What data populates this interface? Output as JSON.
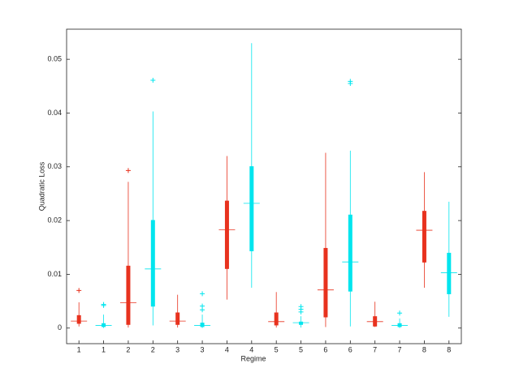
{
  "chart_data": {
    "type": "box",
    "xlabel": "Regime",
    "ylabel": "Quadratic Loss",
    "categories": [
      "1",
      "1",
      "2",
      "2",
      "3",
      "3",
      "4",
      "4",
      "5",
      "5",
      "6",
      "6",
      "7",
      "7",
      "8",
      "8"
    ],
    "colors": [
      "#e8321e",
      "#00e5ee"
    ],
    "ylim": [
      -0.0029,
      0.0556
    ],
    "yticks": [
      0,
      0.01,
      0.02,
      0.03,
      0.04,
      0.05
    ],
    "boxes": [
      {
        "whislo": 0.0003,
        "q1": 0.0008,
        "med": 0.0013,
        "q3": 0.0024,
        "whishi": 0.0048,
        "fliers": [
          0.007
        ]
      },
      {
        "whislo": 0,
        "q1": 0.0002,
        "med": 0.0005,
        "q3": 0.0009,
        "whishi": 0.0025,
        "fliers": [
          0.0042,
          0.0044
        ]
      },
      {
        "whislo": 0.0001,
        "q1": 0.0006,
        "med": 0.0047,
        "q3": 0.0116,
        "whishi": 0.0272,
        "fliers": [
          0.0293
        ]
      },
      {
        "whislo": 0.0005,
        "q1": 0.004,
        "med": 0.011,
        "q3": 0.0201,
        "whishi": 0.0403,
        "fliers": [
          0.0461
        ]
      },
      {
        "whislo": 0.0001,
        "q1": 0.0006,
        "med": 0.0013,
        "q3": 0.0029,
        "whishi": 0.0062,
        "fliers": []
      },
      {
        "whislo": 0,
        "q1": 0.0002,
        "med": 0.0005,
        "q3": 0.001,
        "whishi": 0.0025,
        "fliers": [
          0.0034,
          0.0041,
          0.0064
        ]
      },
      {
        "whislo": 0.0053,
        "q1": 0.011,
        "med": 0.0183,
        "q3": 0.0237,
        "whishi": 0.032,
        "fliers": []
      },
      {
        "whislo": 0.0075,
        "q1": 0.0143,
        "med": 0.0232,
        "q3": 0.0301,
        "whishi": 0.053,
        "fliers": []
      },
      {
        "whislo": 0.0001,
        "q1": 0.0005,
        "med": 0.0012,
        "q3": 0.0029,
        "whishi": 0.0067,
        "fliers": []
      },
      {
        "whislo": 0.0001,
        "q1": 0.0006,
        "med": 0.001,
        "q3": 0.0012,
        "whishi": 0.0022,
        "fliers": [
          0.003,
          0.0035,
          0.004
        ]
      },
      {
        "whislo": 0.0002,
        "q1": 0.002,
        "med": 0.0071,
        "q3": 0.0149,
        "whishi": 0.0326,
        "fliers": []
      },
      {
        "whislo": 0.0003,
        "q1": 0.0068,
        "med": 0.0123,
        "q3": 0.0211,
        "whishi": 0.033,
        "fliers": [
          0.0455,
          0.0459
        ]
      },
      {
        "whislo": 0.0002,
        "q1": 0.0003,
        "med": 0.0012,
        "q3": 0.0022,
        "whishi": 0.0049,
        "fliers": []
      },
      {
        "whislo": 0,
        "q1": 0.0002,
        "med": 0.0005,
        "q3": 0.0009,
        "whishi": 0.0018,
        "fliers": [
          0.0028
        ]
      },
      {
        "whislo": 0.0075,
        "q1": 0.0122,
        "med": 0.0182,
        "q3": 0.0218,
        "whishi": 0.029,
        "fliers": []
      },
      {
        "whislo": 0.0021,
        "q1": 0.0063,
        "med": 0.0103,
        "q3": 0.014,
        "whishi": 0.0235,
        "fliers": []
      }
    ]
  }
}
